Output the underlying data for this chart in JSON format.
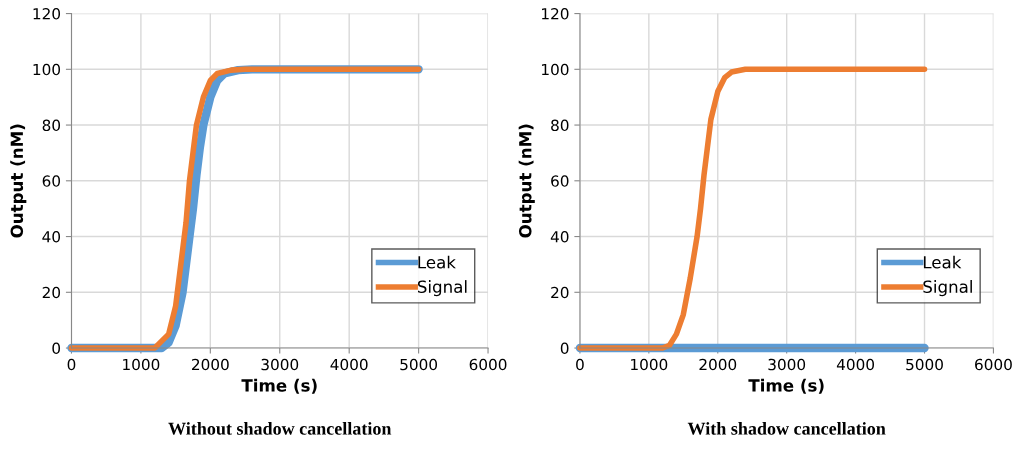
{
  "chart_data": [
    {
      "type": "line",
      "title": "Without shadow cancellation",
      "xlabel": "Time (s)",
      "ylabel": "Output (nM)",
      "xlim": [
        0,
        6000
      ],
      "xticks": [
        0,
        1000,
        2000,
        3000,
        4000,
        5000,
        6000
      ],
      "ylim": [
        0,
        120
      ],
      "yticks": [
        0,
        20,
        40,
        60,
        80,
        100,
        120
      ],
      "grid": true,
      "legend": "bottom right",
      "marker": "none",
      "line_style": "solid",
      "series": [
        {
          "name": "Leak",
          "color": "#5b9bd5",
          "x": [
            0,
            1300,
            1400,
            1500,
            1600,
            1700,
            1750,
            1800,
            1850,
            1900,
            2000,
            2100,
            2200,
            2400,
            2600,
            5000
          ],
          "values": [
            0,
            0,
            2,
            8,
            20,
            40,
            50,
            62,
            72,
            80,
            90,
            96,
            98.5,
            99.7,
            100,
            100
          ]
        },
        {
          "name": "Signal",
          "color": "#ed7d31",
          "x": [
            0,
            1200,
            1400,
            1500,
            1600,
            1650,
            1700,
            1750,
            1800,
            1900,
            2000,
            2100,
            2300,
            2500,
            5000
          ],
          "values": [
            0,
            0,
            5,
            15,
            35,
            45,
            60,
            70,
            80,
            90,
            96,
            98.5,
            99.7,
            100,
            100
          ]
        }
      ]
    },
    {
      "type": "line",
      "title": "With shadow cancellation",
      "xlabel": "Time (s)",
      "ylabel": "Output (nM)",
      "xlim": [
        0,
        6000
      ],
      "xticks": [
        0,
        1000,
        2000,
        3000,
        4000,
        5000,
        6000
      ],
      "ylim": [
        0,
        120
      ],
      "yticks": [
        0,
        20,
        40,
        60,
        80,
        100,
        120
      ],
      "grid": true,
      "legend": "bottom right",
      "marker": "none",
      "line_style": "solid",
      "series": [
        {
          "name": "Leak",
          "color": "#5b9bd5",
          "x": [
            0,
            1000,
            2000,
            3000,
            4000,
            5000
          ],
          "values": [
            0,
            0,
            0,
            0,
            0,
            0
          ]
        },
        {
          "name": "Signal",
          "color": "#ed7d31",
          "x": [
            0,
            1200,
            1300,
            1400,
            1500,
            1600,
            1700,
            1750,
            1800,
            1900,
            2000,
            2100,
            2200,
            2400,
            5000
          ],
          "values": [
            0,
            0,
            1,
            5,
            12,
            25,
            40,
            50,
            62,
            82,
            92,
            97,
            99,
            100,
            100
          ]
        }
      ]
    }
  ]
}
